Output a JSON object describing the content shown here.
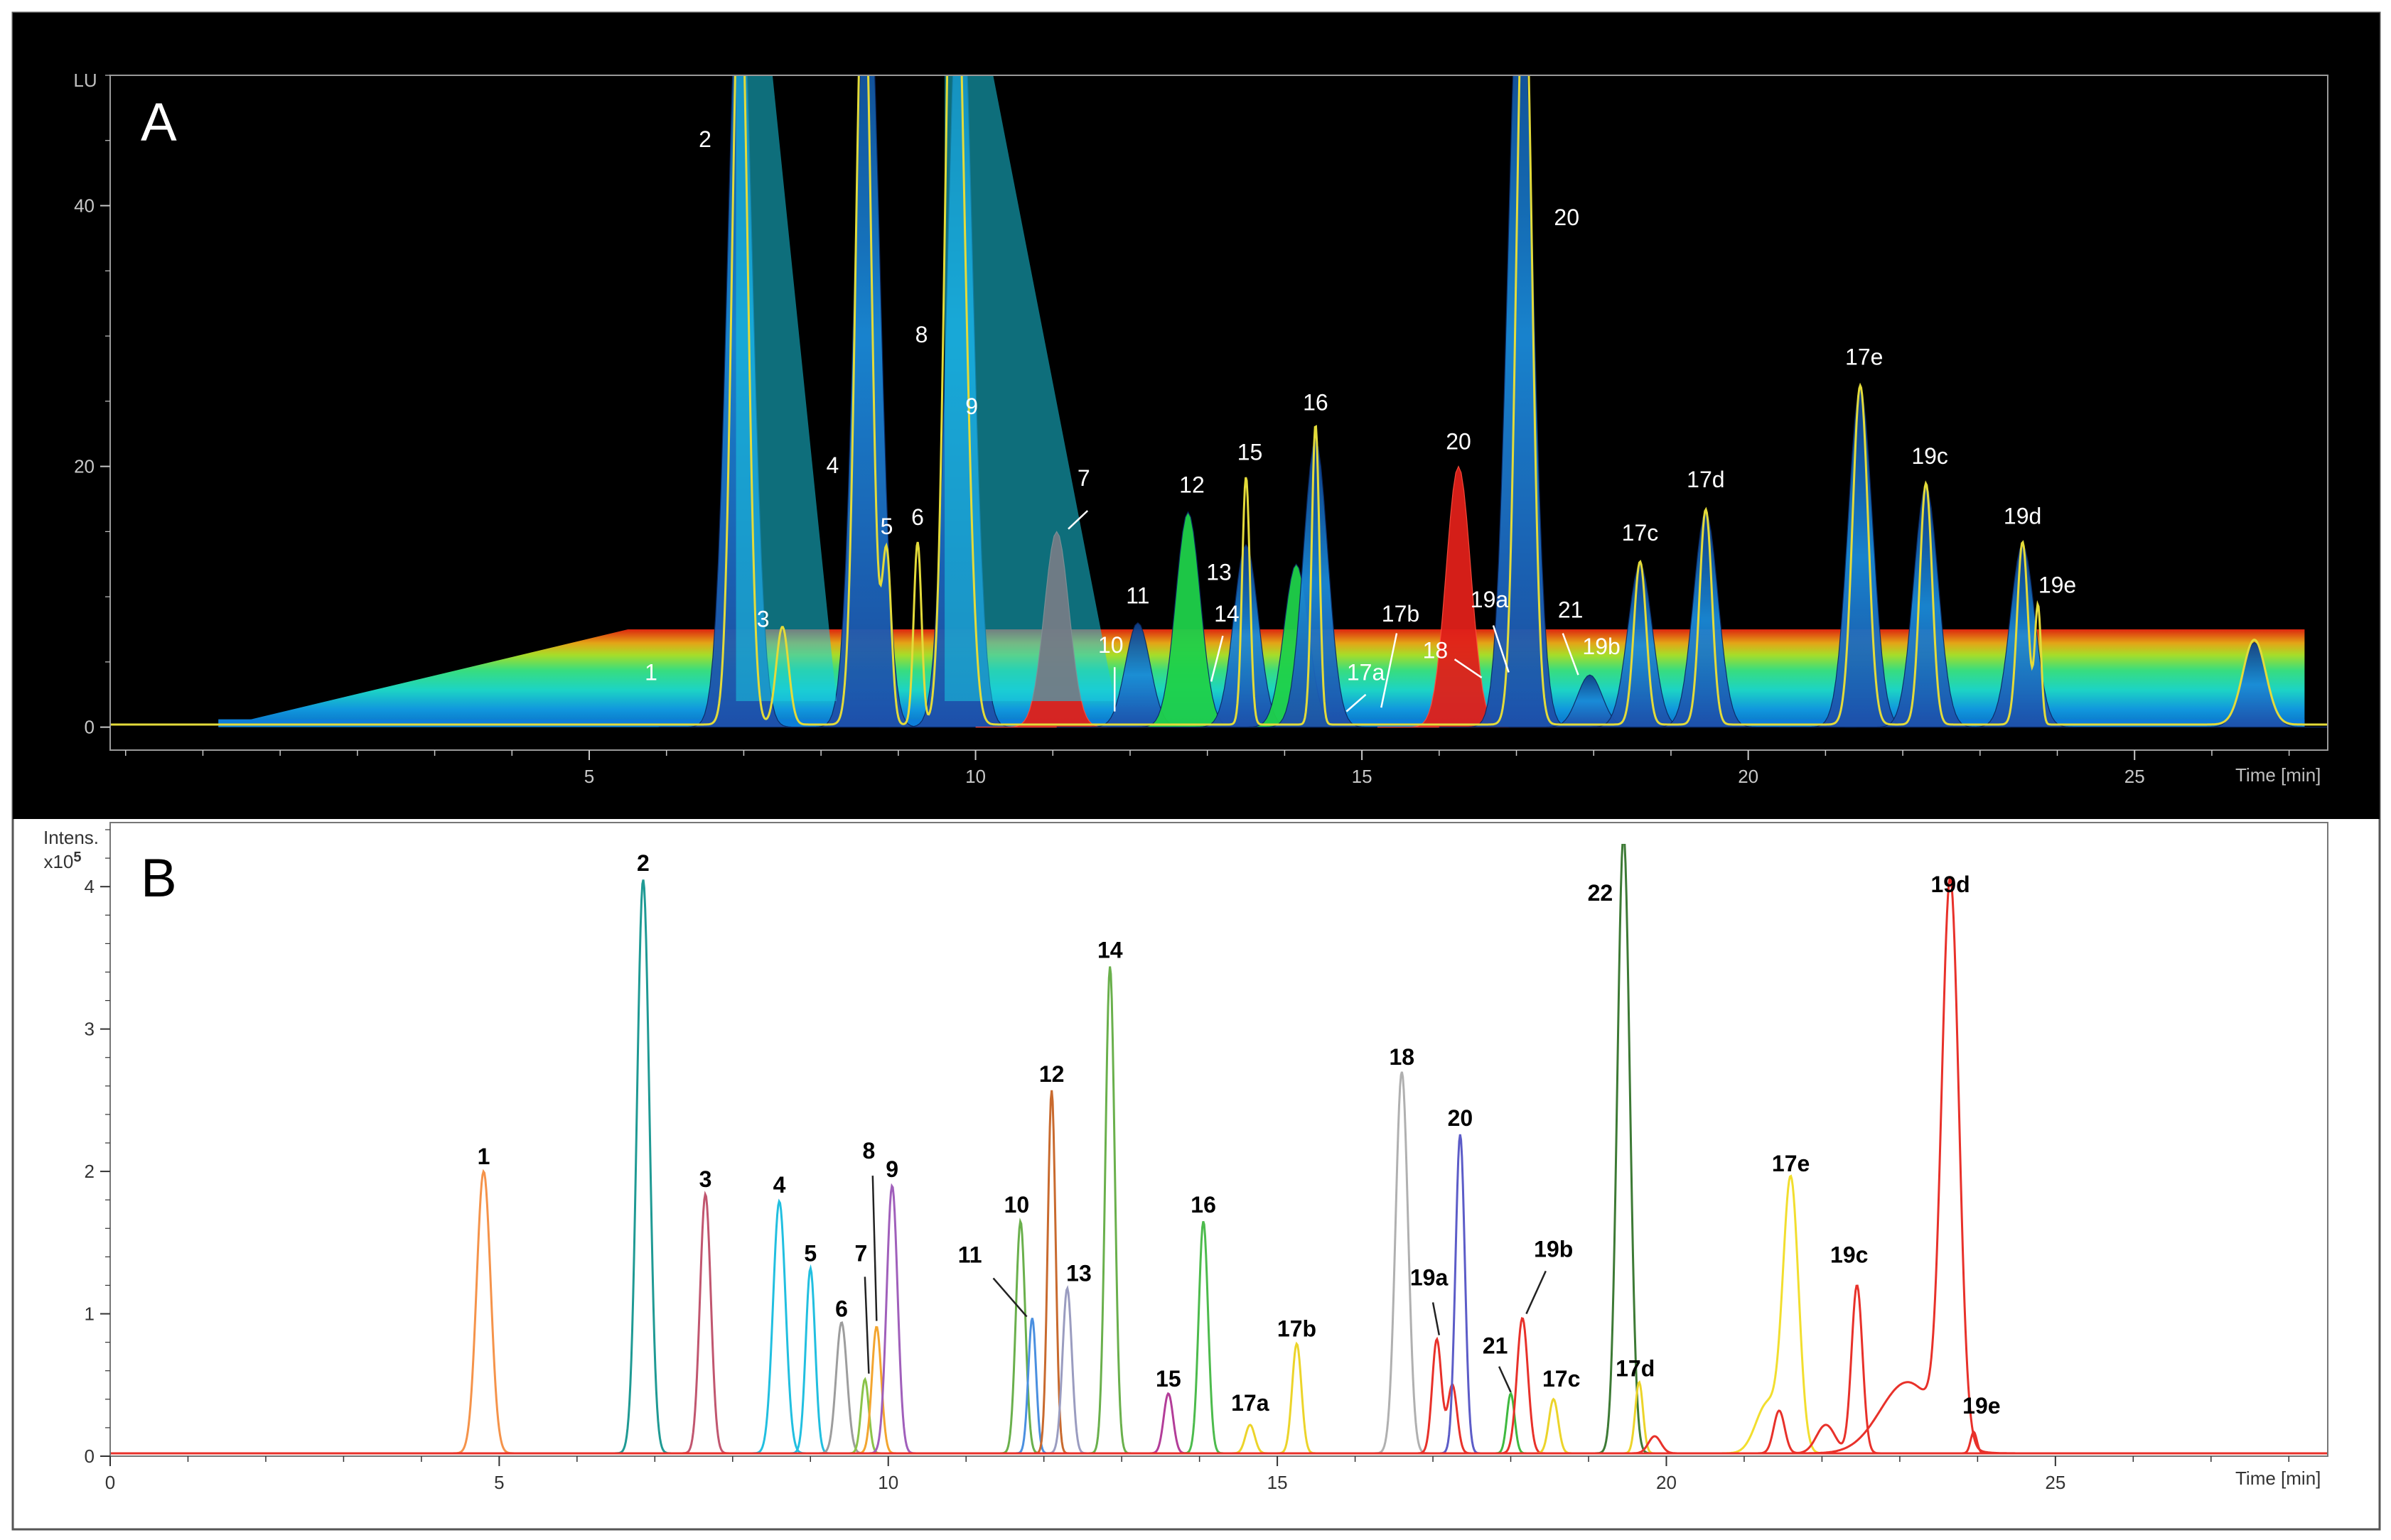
{
  "chart_data": [
    {
      "type": "line",
      "panel_label": "A",
      "ylabel": "LU",
      "xlabel": "Time [min]",
      "xlim": [
        -1.2,
        27.5
      ],
      "ylim": [
        -1,
        50
      ],
      "x_ticks": [
        5,
        10,
        15,
        20,
        25
      ],
      "y_ticks": [
        0,
        20,
        40
      ],
      "background": "#000000",
      "trace_color": "#e3db3a",
      "series": [
        {
          "color": "#e3db3a",
          "peaks": [
            {
              "x": 7.5,
              "y": 7.5,
              "w": 0.08
            },
            {
              "x": 6.95,
              "y": 60,
              "w": 0.1
            },
            {
              "x": 8.55,
              "y": 60,
              "w": 0.1
            },
            {
              "x": 8.85,
              "y": 13,
              "w": 0.06
            },
            {
              "x": 9.25,
              "y": 14,
              "w": 0.05
            },
            {
              "x": 9.7,
              "y": 60,
              "w": 0.1
            },
            {
              "x": 9.85,
              "y": 22,
              "w": 0.1
            },
            {
              "x": 13.5,
              "y": 19,
              "w": 0.05
            },
            {
              "x": 14.4,
              "y": 23,
              "w": 0.05
            },
            {
              "x": 17.1,
              "y": 60,
              "w": 0.1
            },
            {
              "x": 18.6,
              "y": 12.5,
              "w": 0.08
            },
            {
              "x": 19.45,
              "y": 16.5,
              "w": 0.08
            },
            {
              "x": 21.45,
              "y": 26,
              "w": 0.1
            },
            {
              "x": 22.3,
              "y": 18.5,
              "w": 0.08
            },
            {
              "x": 23.55,
              "y": 14,
              "w": 0.07
            },
            {
              "x": 23.75,
              "y": 9,
              "w": 0.04
            },
            {
              "x": 26.55,
              "y": 6.5,
              "w": 0.15
            }
          ]
        }
      ],
      "surface_peaks": [
        {
          "x": 6.95,
          "y": 60
        },
        {
          "x": 8.6,
          "y": 60
        },
        {
          "x": 9.8,
          "y": 60
        },
        {
          "x": 11.05,
          "y": 15
        },
        {
          "x": 12.1,
          "y": 8
        },
        {
          "x": 12.75,
          "y": 16.5
        },
        {
          "x": 13.5,
          "y": 14
        },
        {
          "x": 14.15,
          "y": 12.5
        },
        {
          "x": 14.4,
          "y": 22
        },
        {
          "x": 16.25,
          "y": 20
        },
        {
          "x": 17.05,
          "y": 60
        },
        {
          "x": 17.95,
          "y": 4
        },
        {
          "x": 18.6,
          "y": 12.5
        },
        {
          "x": 19.45,
          "y": 16.5
        },
        {
          "x": 21.45,
          "y": 26
        },
        {
          "x": 22.3,
          "y": 18.5
        },
        {
          "x": 23.55,
          "y": 14
        },
        {
          "x": 26.55,
          "y": 6.5
        }
      ],
      "annotations": [
        {
          "text": "1",
          "x": 5.8,
          "y": 3.6,
          "color": "#ffffff"
        },
        {
          "text": "2",
          "x": 6.5,
          "y": 44.5,
          "color": "#ffffff"
        },
        {
          "text": "3",
          "x": 7.25,
          "y": 7.7,
          "color": "#ffffff"
        },
        {
          "text": "4",
          "x": 8.15,
          "y": 19.5,
          "color": "#ffffff"
        },
        {
          "text": "5",
          "x": 8.85,
          "y": 14.8,
          "color": "#ffffff"
        },
        {
          "text": "6",
          "x": 9.25,
          "y": 15.5,
          "color": "#ffffff"
        },
        {
          "text": "8",
          "x": 9.3,
          "y": 29.5,
          "color": "#ffffff"
        },
        {
          "text": "9",
          "x": 9.95,
          "y": 24,
          "color": "#ffffff"
        },
        {
          "text": "7",
          "x": 11.4,
          "y": 18.5,
          "color": "#ffffff"
        },
        {
          "text": "12",
          "x": 12.8,
          "y": 18,
          "color": "#ffffff"
        },
        {
          "text": "11",
          "x": 12.1,
          "y": 9.5,
          "color": "#ffffff"
        },
        {
          "text": "13",
          "x": 13.15,
          "y": 11.3,
          "color": "#ffffff"
        },
        {
          "text": "14",
          "x": 13.25,
          "y": 8.1,
          "color": "#ffffff"
        },
        {
          "text": "10",
          "x": 11.75,
          "y": 5.7,
          "color": "#ffffff"
        },
        {
          "text": "15",
          "x": 13.55,
          "y": 20.5,
          "color": "#ffffff"
        },
        {
          "text": "16",
          "x": 14.4,
          "y": 24.3,
          "color": "#ffffff"
        },
        {
          "text": "17a",
          "x": 15.05,
          "y": 3.6,
          "color": "#ffffff"
        },
        {
          "text": "17b",
          "x": 15.5,
          "y": 8.1,
          "color": "#ffffff"
        },
        {
          "text": "20",
          "x": 16.25,
          "y": 21.3,
          "color": "#ffffff"
        },
        {
          "text": "19a",
          "x": 16.65,
          "y": 9.2,
          "color": "#ffffff"
        },
        {
          "text": "18",
          "x": 15.95,
          "y": 5.3,
          "color": "#ffffff"
        },
        {
          "text": "20",
          "x": 17.65,
          "y": 38.5,
          "color": "#ffffff"
        },
        {
          "text": "21",
          "x": 17.7,
          "y": 8.4,
          "color": "#ffffff"
        },
        {
          "text": "19b",
          "x": 18.1,
          "y": 5.6,
          "color": "#ffffff"
        },
        {
          "text": "17c",
          "x": 18.6,
          "y": 14.3,
          "color": "#ffffff"
        },
        {
          "text": "17d",
          "x": 19.45,
          "y": 18.4,
          "color": "#ffffff"
        },
        {
          "text": "17e",
          "x": 21.5,
          "y": 27.8,
          "color": "#ffffff"
        },
        {
          "text": "19c",
          "x": 22.35,
          "y": 20.2,
          "color": "#ffffff"
        },
        {
          "text": "19d",
          "x": 23.55,
          "y": 15.6,
          "color": "#ffffff"
        },
        {
          "text": "19e",
          "x": 24.0,
          "y": 10.3,
          "color": "#ffffff"
        }
      ],
      "leader_lines": [
        {
          "from": [
            11.45,
            16.6
          ],
          "to": [
            11.2,
            15.2
          ]
        },
        {
          "from": [
            11.8,
            4.6
          ],
          "to": [
            11.8,
            1.2
          ]
        },
        {
          "from": [
            13.2,
            7.0
          ],
          "to": [
            13.05,
            3.5
          ]
        },
        {
          "from": [
            15.05,
            2.5
          ],
          "to": [
            14.8,
            1.2
          ]
        },
        {
          "from": [
            15.45,
            7.2
          ],
          "to": [
            15.25,
            1.5
          ]
        },
        {
          "from": [
            16.2,
            5.2
          ],
          "to": [
            16.55,
            3.8
          ]
        },
        {
          "from": [
            16.7,
            7.8
          ],
          "to": [
            16.9,
            4.2
          ]
        },
        {
          "from": [
            17.6,
            7.2
          ],
          "to": [
            17.8,
            4.0
          ]
        }
      ]
    },
    {
      "type": "line",
      "panel_label": "B",
      "ylabel": "Intens.",
      "y_multiplier": "x10",
      "y_multiplier_exp": "5",
      "xlabel": "Time [min]",
      "xlim": [
        0,
        28.5
      ],
      "ylim": [
        0,
        4.45
      ],
      "x_ticks": [
        0,
        5,
        10,
        15,
        20,
        25
      ],
      "y_ticks": [
        0,
        1,
        2,
        3,
        4
      ],
      "series": [
        {
          "label": "1",
          "color": "#f5934a",
          "peaks": [
            {
              "x": 4.8,
              "y": 1.98,
              "w": 0.09
            }
          ]
        },
        {
          "label": "2",
          "color": "#1f9a94",
          "peaks": [
            {
              "x": 6.85,
              "y": 4.03,
              "w": 0.08
            }
          ]
        },
        {
          "label": "3",
          "color": "#c1566f",
          "peaks": [
            {
              "x": 7.65,
              "y": 1.82,
              "w": 0.07
            }
          ]
        },
        {
          "label": "4",
          "color": "#21bfe0",
          "peaks": [
            {
              "x": 8.6,
              "y": 1.77,
              "w": 0.08
            }
          ]
        },
        {
          "label": "5",
          "color": "#21bfe0",
          "peaks": [
            {
              "x": 9.0,
              "y": 1.3,
              "w": 0.06
            }
          ]
        },
        {
          "label": "6",
          "color": "#9d9d9d",
          "peaks": [
            {
              "x": 9.4,
              "y": 0.92,
              "w": 0.07
            }
          ]
        },
        {
          "label": "7",
          "color": "#8bc34a",
          "peaks": [
            {
              "x": 9.7,
              "y": 0.52,
              "w": 0.05
            }
          ]
        },
        {
          "label": "8",
          "color": "#f3a52f",
          "peaks": [
            {
              "x": 9.85,
              "y": 0.89,
              "w": 0.06
            }
          ]
        },
        {
          "label": "9",
          "color": "#a05fbb",
          "peaks": [
            {
              "x": 10.05,
              "y": 1.88,
              "w": 0.07
            }
          ]
        },
        {
          "label": "10",
          "color": "#6ab04c",
          "peaks": [
            {
              "x": 11.7,
              "y": 1.63,
              "w": 0.06
            }
          ]
        },
        {
          "label": "11",
          "color": "#4a8fe0",
          "peaks": [
            {
              "x": 11.85,
              "y": 0.95,
              "w": 0.05
            }
          ]
        },
        {
          "label": "12",
          "color": "#c96a2e",
          "peaks": [
            {
              "x": 12.1,
              "y": 2.55,
              "w": 0.05
            }
          ]
        },
        {
          "label": "13",
          "color": "#9a9cc0",
          "peaks": [
            {
              "x": 12.3,
              "y": 1.16,
              "w": 0.06
            }
          ]
        },
        {
          "label": "14",
          "color": "#6ab04c",
          "peaks": [
            {
              "x": 12.85,
              "y": 3.42,
              "w": 0.06
            }
          ]
        },
        {
          "label": "15",
          "color": "#b33d99",
          "peaks": [
            {
              "x": 13.6,
              "y": 0.42,
              "w": 0.06
            }
          ]
        },
        {
          "label": "16",
          "color": "#4cbb4c",
          "peaks": [
            {
              "x": 14.05,
              "y": 1.63,
              "w": 0.06
            }
          ]
        },
        {
          "label": "17a",
          "color": "#ecd42a",
          "peaks": [
            {
              "x": 14.65,
              "y": 0.2,
              "w": 0.06
            }
          ]
        },
        {
          "label": "17b",
          "color": "#ecd42a",
          "peaks": [
            {
              "x": 15.25,
              "y": 0.77,
              "w": 0.06
            }
          ]
        },
        {
          "label": "18",
          "color": "#b0b0b0",
          "peaks": [
            {
              "x": 16.6,
              "y": 2.68,
              "w": 0.08
            }
          ]
        },
        {
          "label": "19a",
          "color": "#e8312a",
          "peaks": [
            {
              "x": 17.05,
              "y": 0.8,
              "w": 0.06
            },
            {
              "x": 17.25,
              "y": 0.48,
              "w": 0.06
            }
          ]
        },
        {
          "label": "20",
          "color": "#5c5cc8",
          "peaks": [
            {
              "x": 17.35,
              "y": 2.24,
              "w": 0.06
            }
          ]
        },
        {
          "label": "21",
          "color": "#3fb93f",
          "peaks": [
            {
              "x": 18.0,
              "y": 0.42,
              "w": 0.05
            }
          ]
        },
        {
          "label": "19b",
          "color": "#e8312a",
          "peaks": [
            {
              "x": 18.15,
              "y": 0.95,
              "w": 0.07
            }
          ]
        },
        {
          "label": "17c",
          "color": "#ecd42a",
          "peaks": [
            {
              "x": 18.55,
              "y": 0.38,
              "w": 0.06
            }
          ]
        },
        {
          "label": "22",
          "color": "#3d7a35",
          "peaks": [
            {
              "x": 19.45,
              "y": 4.35,
              "w": 0.08
            }
          ]
        },
        {
          "label": "17d",
          "color": "#ecd42a",
          "peaks": [
            {
              "x": 19.65,
              "y": 0.5,
              "w": 0.05
            }
          ]
        },
        {
          "label": "17e",
          "color": "#f2de2e",
          "peaks": [
            {
              "x": 21.6,
              "y": 1.9,
              "w": 0.1
            },
            {
              "x": 21.3,
              "y": 0.35,
              "w": 0.15
            }
          ]
        },
        {
          "label": "19c",
          "color": "#e8312a",
          "peaks": [
            {
              "x": 22.45,
              "y": 1.18,
              "w": 0.07
            },
            {
              "x": 21.45,
              "y": 0.3,
              "w": 0.07
            },
            {
              "x": 22.05,
              "y": 0.2,
              "w": 0.12
            },
            {
              "x": 19.85,
              "y": 0.12,
              "w": 0.08
            }
          ]
        },
        {
          "label": "19d",
          "color": "#e8312a",
          "peaks": [
            {
              "x": 23.65,
              "y": 3.9,
              "w": 0.11
            },
            {
              "x": 23.1,
              "y": 0.5,
              "w": 0.35
            }
          ]
        },
        {
          "label": "19e",
          "color": "#e8312a",
          "peaks": [
            {
              "x": 23.95,
              "y": 0.15,
              "w": 0.04
            }
          ]
        }
      ],
      "annotations": [
        {
          "text": "1",
          "x": 4.8,
          "y": 2.05
        },
        {
          "text": "2",
          "x": 6.85,
          "y": 4.11
        },
        {
          "text": "3",
          "x": 7.65,
          "y": 1.89
        },
        {
          "text": "4",
          "x": 8.6,
          "y": 1.85
        },
        {
          "text": "5",
          "x": 9.0,
          "y": 1.37
        },
        {
          "text": "6",
          "x": 9.4,
          "y": 0.98
        },
        {
          "text": "7",
          "x": 9.65,
          "y": 1.37
        },
        {
          "text": "8",
          "x": 9.75,
          "y": 2.09
        },
        {
          "text": "9",
          "x": 10.05,
          "y": 1.96
        },
        {
          "text": "10",
          "x": 11.65,
          "y": 1.71
        },
        {
          "text": "11",
          "x": 11.05,
          "y": 1.36
        },
        {
          "text": "12",
          "x": 12.1,
          "y": 2.63
        },
        {
          "text": "13",
          "x": 12.45,
          "y": 1.23
        },
        {
          "text": "14",
          "x": 12.85,
          "y": 3.5
        },
        {
          "text": "15",
          "x": 13.6,
          "y": 0.49
        },
        {
          "text": "16",
          "x": 14.05,
          "y": 1.71
        },
        {
          "text": "17a",
          "x": 14.65,
          "y": 0.32
        },
        {
          "text": "17b",
          "x": 15.25,
          "y": 0.84
        },
        {
          "text": "18",
          "x": 16.6,
          "y": 2.75
        },
        {
          "text": "19a",
          "x": 16.95,
          "y": 1.2
        },
        {
          "text": "20",
          "x": 17.35,
          "y": 2.32
        },
        {
          "text": "21",
          "x": 17.8,
          "y": 0.72
        },
        {
          "text": "19b",
          "x": 18.55,
          "y": 1.4
        },
        {
          "text": "17c",
          "x": 18.65,
          "y": 0.49
        },
        {
          "text": "22",
          "x": 19.15,
          "y": 3.9
        },
        {
          "text": "17d",
          "x": 19.6,
          "y": 0.56
        },
        {
          "text": "17e",
          "x": 21.6,
          "y": 2.0
        },
        {
          "text": "19c",
          "x": 22.35,
          "y": 1.36
        },
        {
          "text": "19d",
          "x": 23.65,
          "y": 3.96
        },
        {
          "text": "19e",
          "x": 24.05,
          "y": 0.3
        }
      ],
      "leader_lines": [
        {
          "from": [
            9.8,
            1.97
          ],
          "to": [
            9.85,
            0.95
          ]
        },
        {
          "from": [
            9.7,
            1.26
          ],
          "to": [
            9.75,
            0.58
          ]
        },
        {
          "from": [
            11.35,
            1.25
          ],
          "to": [
            11.78,
            0.98
          ]
        },
        {
          "from": [
            17.0,
            1.08
          ],
          "to": [
            17.08,
            0.85
          ]
        },
        {
          "from": [
            18.45,
            1.3
          ],
          "to": [
            18.2,
            1.0
          ]
        },
        {
          "from": [
            17.85,
            0.63
          ],
          "to": [
            18.0,
            0.45
          ]
        }
      ]
    }
  ]
}
